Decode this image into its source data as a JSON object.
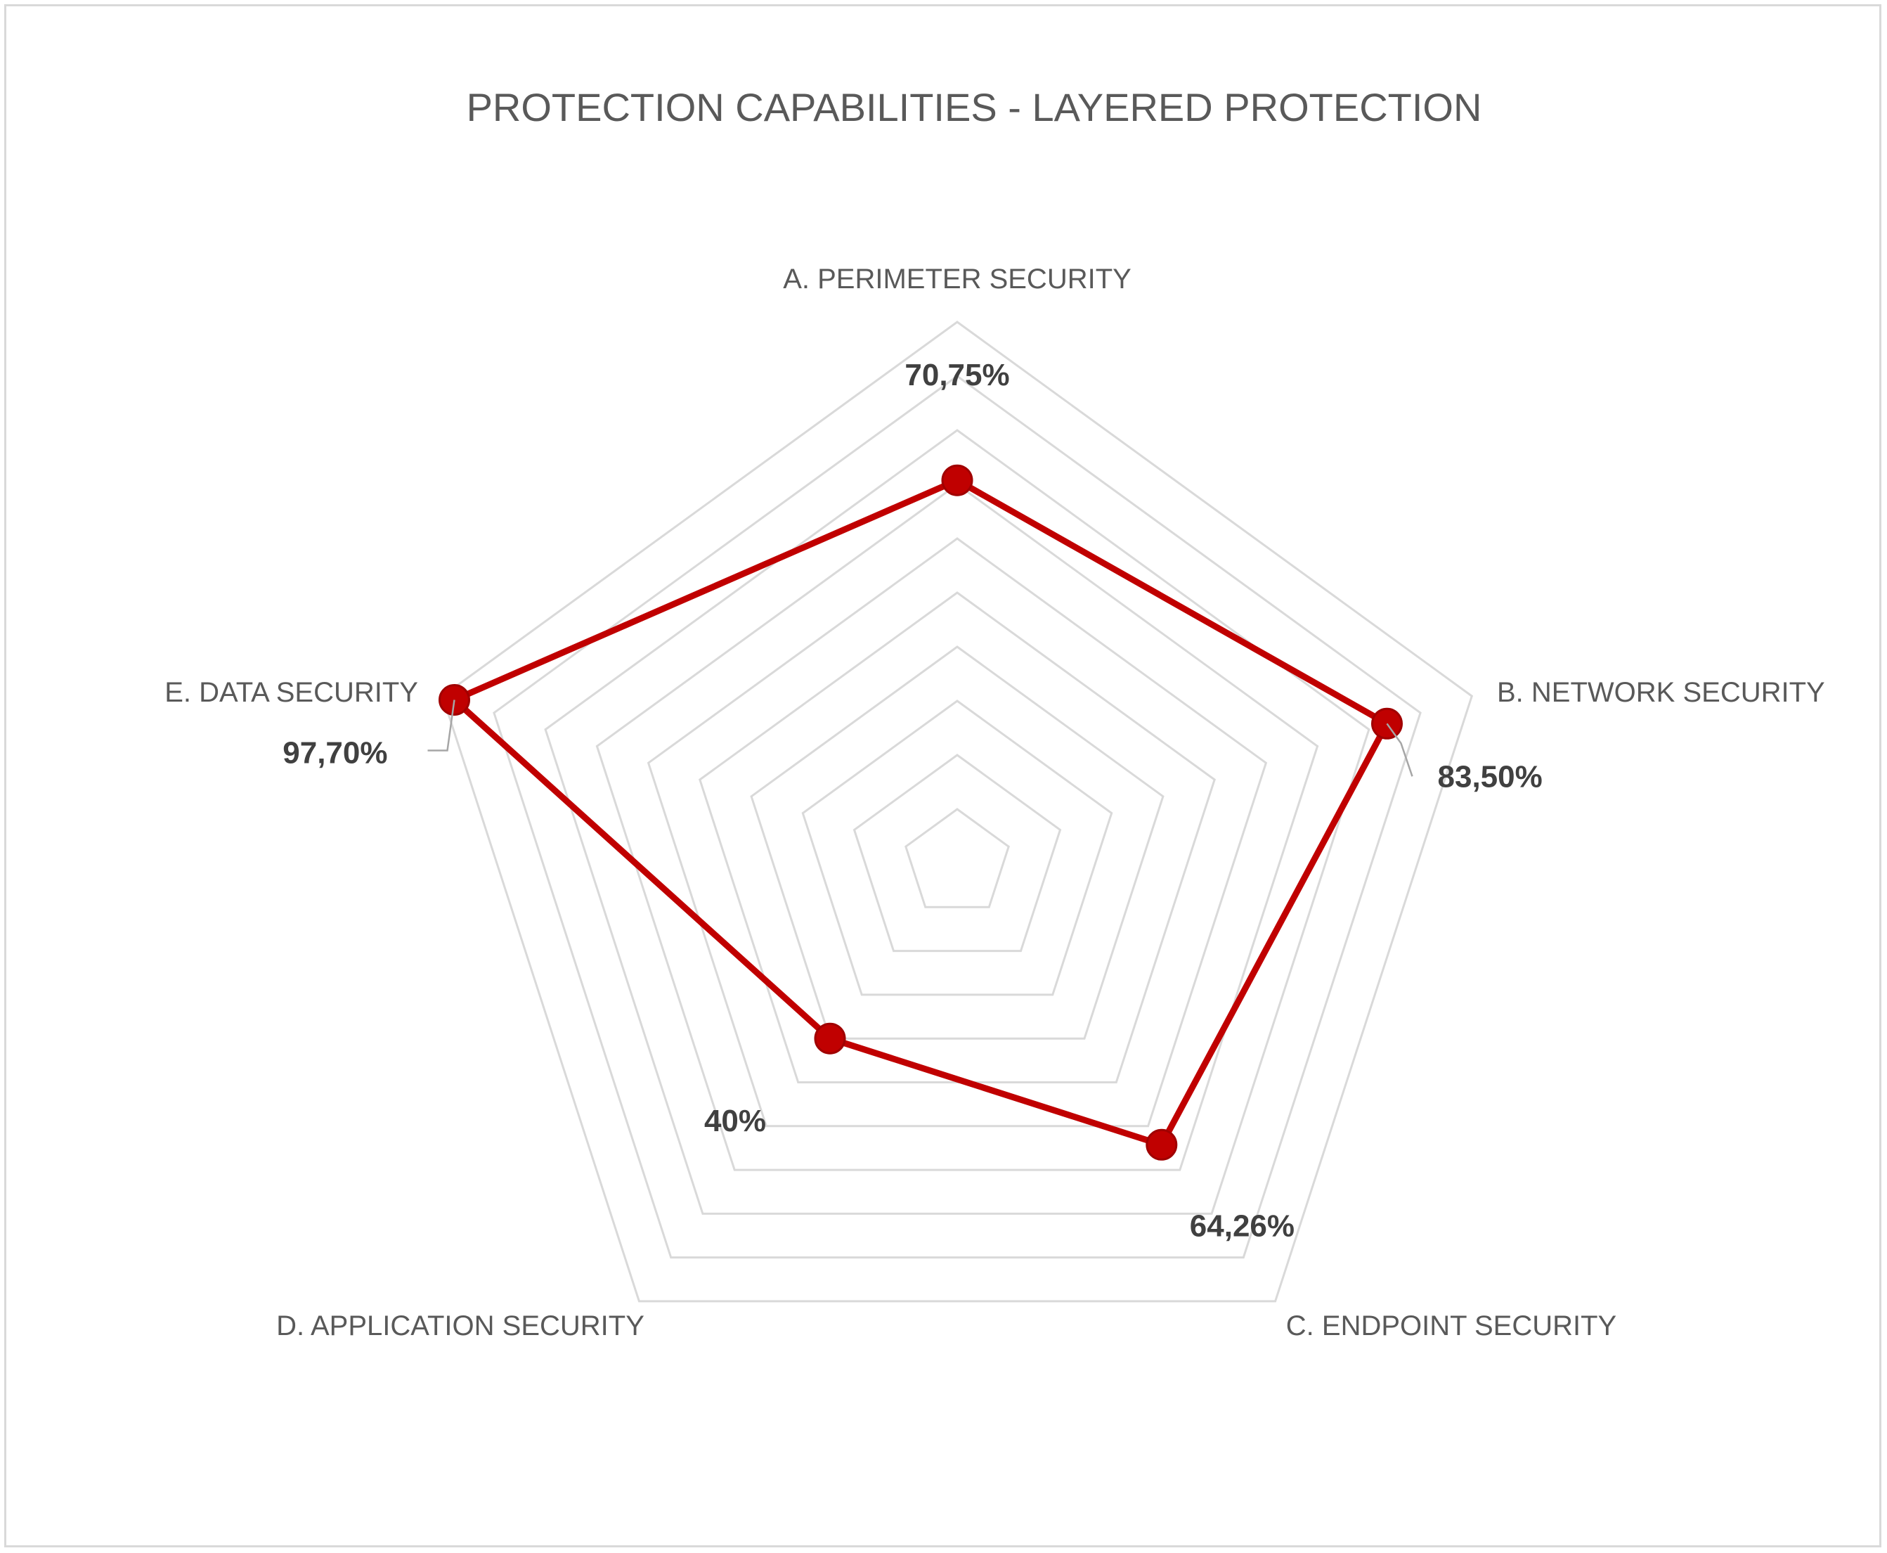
{
  "chart_data": {
    "type": "radar",
    "title": "PROTECTION CAPABILITIES - LAYERED PROTECTION",
    "categories": [
      "A. PERIMETER SECURITY",
      "B. NETWORK SECURITY",
      "C. ENDPOINT SECURITY",
      "D. APPLICATION SECURITY",
      "E. DATA SECURITY"
    ],
    "series": [
      {
        "values": [
          70.75,
          83.5,
          64.26,
          40,
          97.7
        ],
        "labels": [
          "70,75%",
          "83,50%",
          "64,26%",
          "40%",
          "97,70%"
        ],
        "color": "#c00000"
      }
    ],
    "rlim": [
      0,
      100
    ],
    "gridlines": 10,
    "grid": true,
    "legend": "none"
  }
}
